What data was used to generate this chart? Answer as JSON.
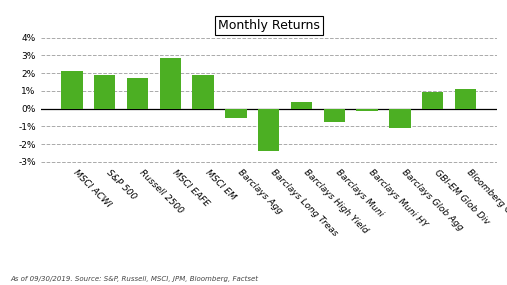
{
  "title": "Monthly Returns",
  "categories": [
    "MSCI ACWI",
    "S&P 500",
    "Russell 2500",
    "MSCI EAFE",
    "MSCI EM",
    "Barclays Agg",
    "Barclays Long Treas",
    "Barclays High Yield",
    "Barclays Muni",
    "Barclays Muni HY",
    "Barclays Glob Agg",
    "GBI-EM Glob Div",
    "Bloomberg Commodity"
  ],
  "values": [
    2.1,
    1.87,
    1.75,
    2.87,
    1.92,
    -0.53,
    -2.42,
    0.38,
    -0.78,
    -0.15,
    -1.08,
    0.92,
    1.12
  ],
  "bar_color": "#4caf23",
  "ylim_min": -3.2,
  "ylim_max": 4.2,
  "yticks": [
    -3,
    -2,
    -1,
    0,
    1,
    2,
    3,
    4
  ],
  "ytick_labels": [
    "-3%",
    "-2%",
    "-1%",
    "0%",
    "1%",
    "2%",
    "3%",
    "4%"
  ],
  "background_color": "#ffffff",
  "grid_color": "#aaaaaa",
  "title_fontsize": 9,
  "tick_fontsize": 6.5,
  "footnote": "As of 09/30/2019. Source: S&P, Russell, MSCI, JPM, Bloomberg, Factset",
  "footnote_fontsize": 5.0
}
